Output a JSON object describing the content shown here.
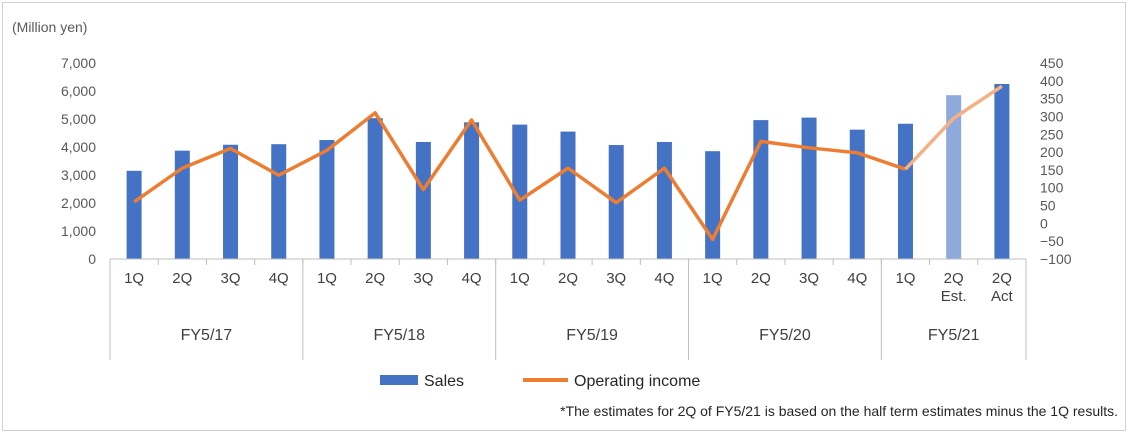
{
  "chart_data": {
    "type": "bar+line",
    "unit_label": "(Million yen)",
    "categories": [
      "1Q",
      "2Q",
      "3Q",
      "4Q",
      "1Q",
      "2Q",
      "3Q",
      "4Q",
      "1Q",
      "2Q",
      "3Q",
      "4Q",
      "1Q",
      "2Q",
      "3Q",
      "4Q",
      "1Q",
      "2Q\nEst.",
      "2Q\nAct"
    ],
    "groups": [
      {
        "label": "FY5/17",
        "count": 4
      },
      {
        "label": "FY5/18",
        "count": 4
      },
      {
        "label": "FY5/19",
        "count": 4
      },
      {
        "label": "FY5/20",
        "count": 4
      },
      {
        "label": "FY5/21",
        "count": 3
      }
    ],
    "series": [
      {
        "name": "Sales",
        "axis": "left",
        "kind": "bar",
        "color": "#4472C4",
        "estimate_color": "#8EA9DB",
        "estimate_index": 17,
        "values": [
          3150,
          3870,
          4080,
          4100,
          4250,
          5030,
          4180,
          4880,
          4800,
          4550,
          4070,
          4180,
          3850,
          4960,
          5050,
          4620,
          4830,
          5850,
          6250
        ]
      },
      {
        "name": "Operating income",
        "axis": "right",
        "kind": "line",
        "color": "#ED7D31",
        "estimate_color": "#F4B183",
        "estimate_from_index": 16,
        "values": [
          60,
          155,
          210,
          135,
          205,
          310,
          95,
          290,
          65,
          155,
          58,
          155,
          -45,
          230,
          212,
          198,
          152,
          295,
          385
        ]
      }
    ],
    "left_axis": {
      "min": 0,
      "max": 7000,
      "ticks": [
        "0",
        "1,000",
        "2,000",
        "3,000",
        "4,000",
        "5,000",
        "6,000",
        "7,000"
      ]
    },
    "right_axis": {
      "min": -100,
      "max": 450,
      "ticks": [
        "−100",
        "−50",
        "0",
        "50",
        "100",
        "150",
        "200",
        "250",
        "300",
        "350",
        "400",
        "450"
      ]
    },
    "note": "*The estimates for 2Q of FY5/21 is based on the half term estimates minus the 1Q results."
  }
}
